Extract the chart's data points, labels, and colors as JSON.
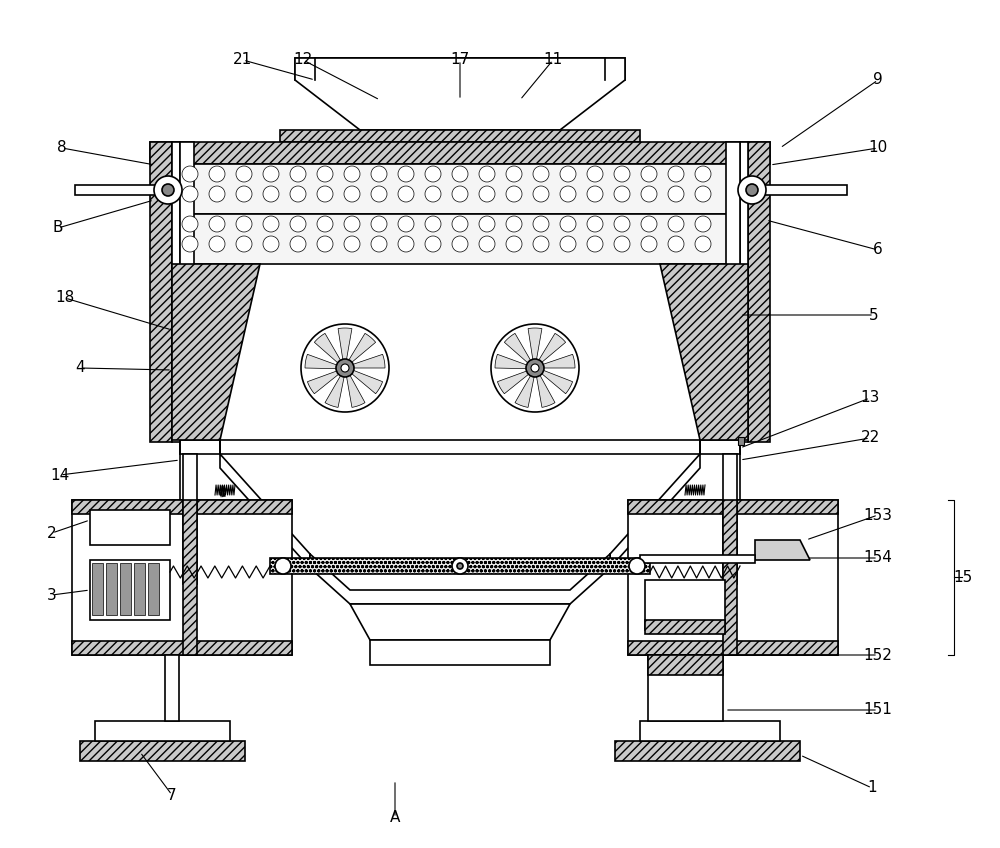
{
  "bg_color": "#ffffff",
  "fig_width": 10.0,
  "fig_height": 8.48,
  "lw": 1.2,
  "lw_thin": 0.8,
  "hatch_dense": "////",
  "hatch_dot": "oooo"
}
